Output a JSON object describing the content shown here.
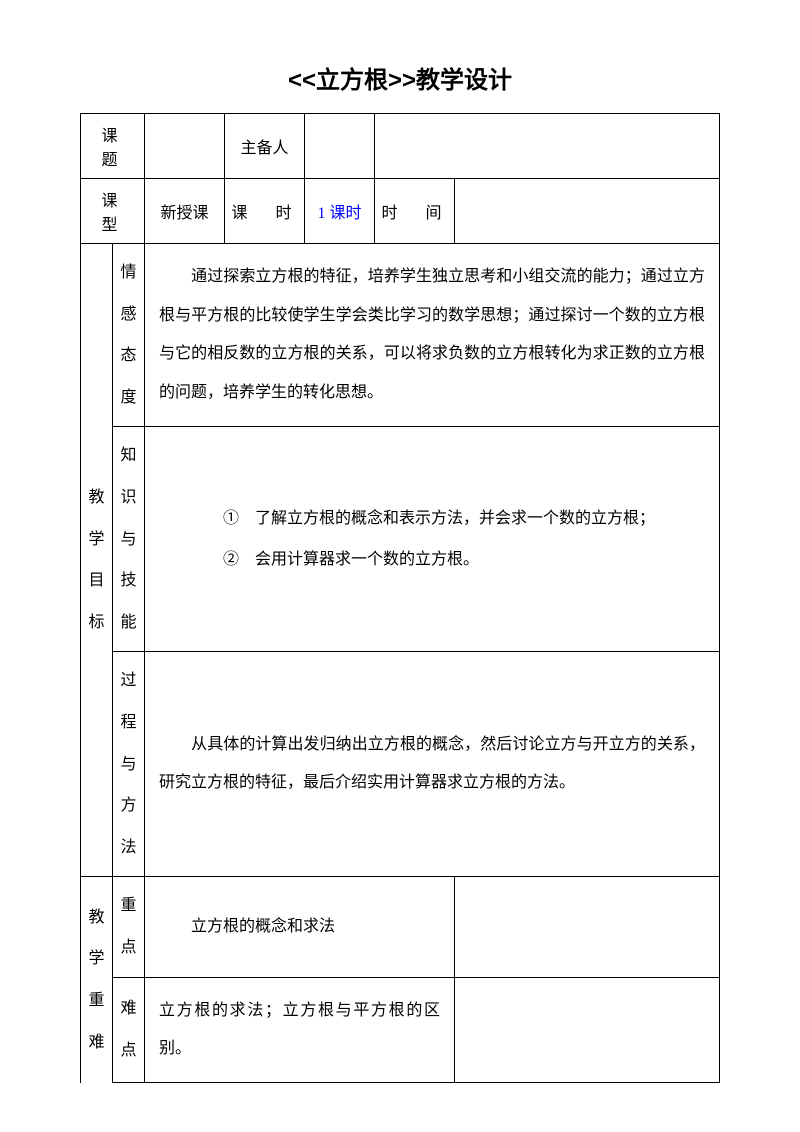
{
  "title": "<<立方根>>教学设计",
  "row1": {
    "label_topic": "课　题",
    "label_preparer": "主备人"
  },
  "row2": {
    "label_type": "课　型",
    "val_type": "新授课",
    "label_period": "课　时",
    "val_period": "1 课时",
    "label_time": "时　间"
  },
  "goals": {
    "label": "教学目标",
    "attitude_label": "情感态度",
    "attitude_text": "　　通过探索立方根的特征，培养学生独立思考和小组交流的能力；通过立方根与平方根的比较使学生学会类比学习的数学思想；通过探讨一个数的立方根与它的相反数的立方根的关系，可以将求负数的立方根转化为求正数的立方根的问题，培养学生的转化思想。",
    "knowledge_label": "知识与技能",
    "knowledge_line1": "　　①　了解立方根的概念和表示方法，并会求一个数的立方根；",
    "knowledge_line2": "　　②　会用计算器求一个数的立方根。",
    "process_label": "过程与方法",
    "process_text": "　　从具体的计算出发归纳出立方根的概念，然后讨论立方与开立方的关系，研究立方根的特征，最后介绍实用计算器求立方根的方法。"
  },
  "keydiff": {
    "label": "教学重难",
    "key_label": "重点",
    "key_text": "　　立方根的概念和求法",
    "diff_label": "难点",
    "diff_text": "立方根的求法；立方根与平方根的区别。"
  },
  "colors": {
    "text": "#000000",
    "link": "#0000ff",
    "bg": "#ffffff",
    "border": "#000000"
  }
}
